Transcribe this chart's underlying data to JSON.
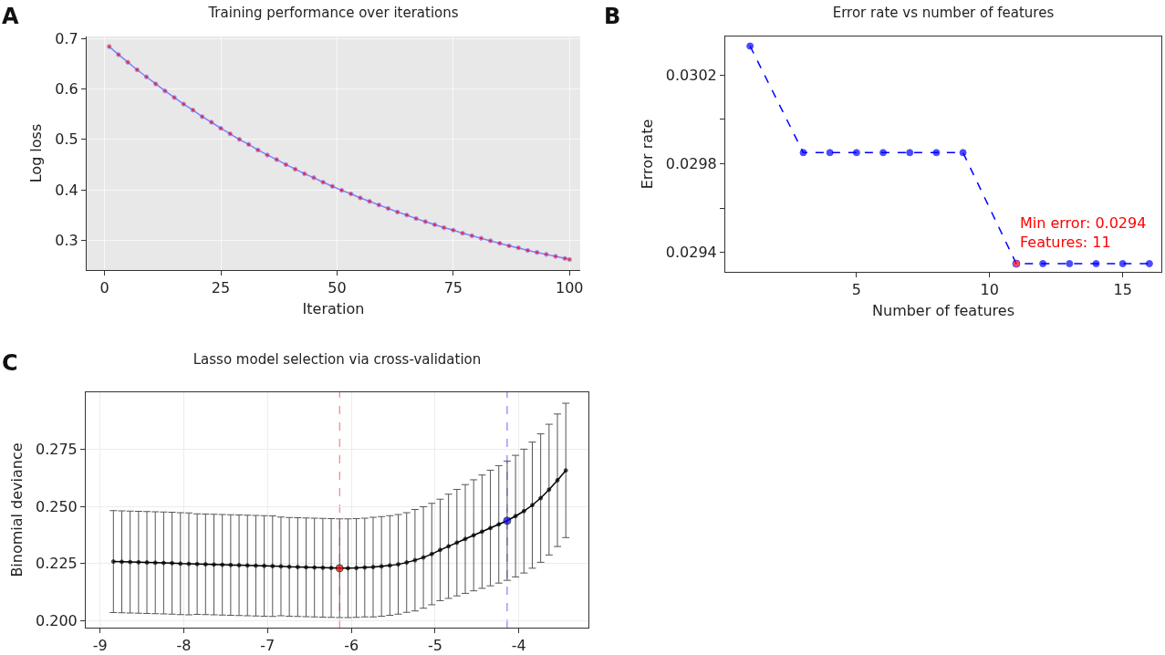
{
  "chart_data": [
    {
      "type": "line",
      "title": "Training performance over iterations",
      "xlabel": "Iteration",
      "ylabel": "Log loss",
      "annotations": [
        "A"
      ],
      "x": [
        1,
        3,
        5,
        7,
        9,
        11,
        13,
        15,
        17,
        19,
        21,
        23,
        25,
        27,
        29,
        31,
        33,
        35,
        37,
        39,
        41,
        43,
        45,
        47,
        49,
        51,
        53,
        55,
        57,
        59,
        61,
        63,
        65,
        67,
        69,
        71,
        73,
        75,
        77,
        79,
        81,
        83,
        85,
        87,
        89,
        91,
        93,
        95,
        97,
        99,
        100
      ],
      "values": [
        0.684,
        0.668,
        0.653,
        0.638,
        0.624,
        0.61,
        0.596,
        0.583,
        0.57,
        0.558,
        0.545,
        0.534,
        0.522,
        0.511,
        0.5,
        0.49,
        0.479,
        0.469,
        0.46,
        0.45,
        0.441,
        0.432,
        0.424,
        0.415,
        0.407,
        0.399,
        0.392,
        0.384,
        0.377,
        0.37,
        0.363,
        0.356,
        0.35,
        0.343,
        0.337,
        0.331,
        0.325,
        0.32,
        0.314,
        0.309,
        0.304,
        0.299,
        0.294,
        0.289,
        0.285,
        0.28,
        0.276,
        0.272,
        0.268,
        0.264,
        0.262
      ],
      "color": "#7f7fff",
      "colors": [
        "#ff0000",
        "#ff0000",
        "#ff0000",
        "#ff0000",
        "#ff0000",
        "#ff0000",
        "#ff0000",
        "#ff0000",
        "#ff0000",
        "#ff0000",
        "#ff0000",
        "#ff0000",
        "#ff0000",
        "#ff0000",
        "#ff0000",
        "#ff0000",
        "#ff0000",
        "#ff0000",
        "#ff0000",
        "#ff0000",
        "#ff0000",
        "#ff0000",
        "#ff0000",
        "#ff0000",
        "#ff0000",
        "#ff0000",
        "#ff0000",
        "#ff0000",
        "#ff0000",
        "#ff0000",
        "#ff0000",
        "#ff0000",
        "#ff0000",
        "#ff0000",
        "#ff0000",
        "#ff0000",
        "#ff0000",
        "#ff0000",
        "#ff0000",
        "#ff0000",
        "#ff0000",
        "#ff0000",
        "#ff0000",
        "#ff0000",
        "#ff0000",
        "#ff0000",
        "#ff0000",
        "#ff0000",
        "#ff0000",
        "#ff0000",
        "#ff0000"
      ],
      "marker": "circle",
      "line_style": "solid",
      "grid": true,
      "xlim": [
        -3.85,
        102.3
      ],
      "xticks": [
        0,
        25,
        50,
        75,
        100
      ],
      "ylim": [
        0.241,
        0.704
      ],
      "yticks": [
        0.3,
        0.4,
        0.5,
        0.6,
        0.7
      ]
    },
    {
      "type": "line",
      "title": "Error rate vs number of features",
      "xlabel": "Number of features",
      "ylabel": "Error rate",
      "annotations": [
        "B",
        {
          "text": "Min error: 0.0294\nFeatures: 11",
          "x": 11,
          "y": 0.02935
        }
      ],
      "x": [
        1,
        3,
        4,
        5,
        6,
        7,
        8,
        9,
        11,
        12,
        13,
        14,
        15,
        16
      ],
      "values": [
        0.03033,
        0.02985,
        0.02985,
        0.02985,
        0.02985,
        0.02985,
        0.02985,
        0.02985,
        0.02935,
        0.02935,
        0.02935,
        0.02935,
        0.02935,
        0.02935
      ],
      "color": "#0000ff",
      "colors": [
        "#0000ff",
        "#0000ff",
        "#0000ff",
        "#0000ff",
        "#0000ff",
        "#0000ff",
        "#0000ff",
        "#0000ff",
        "#ff0000",
        "#0000ff",
        "#0000ff",
        "#0000ff",
        "#0000ff",
        "#0000ff"
      ],
      "marker": "circle",
      "line_style": "dashed",
      "grid": false,
      "xlim": [
        0.07,
        16.45
      ],
      "xticks": [
        5,
        10,
        15
      ],
      "ylim": [
        0.029313,
        0.030373
      ],
      "yticks": [
        0.0294,
        {
          "value": 0.0296,
          "label": null
        },
        0.0298,
        {
          "value": 0.03,
          "label": null
        },
        0.0302
      ]
    },
    {
      "type": "line",
      "title": "Lasso model selection via cross-validation",
      "ylabel": "Binomial deviance",
      "annotations": [
        "C"
      ],
      "x": [
        -8.84,
        -8.74,
        -8.64,
        -8.54,
        -8.44,
        -8.34,
        -8.24,
        -8.14,
        -8.04,
        -7.94,
        -7.84,
        -7.74,
        -7.64,
        -7.54,
        -7.44,
        -7.34,
        -7.24,
        -7.14,
        -7.04,
        -6.94,
        -6.84,
        -6.74,
        -6.64,
        -6.54,
        -6.44,
        -6.34,
        -6.24,
        -6.14,
        -6.04,
        -5.94,
        -5.84,
        -5.74,
        -5.64,
        -5.54,
        -5.44,
        -5.34,
        -5.24,
        -5.14,
        -5.04,
        -4.94,
        -4.84,
        -4.74,
        -4.64,
        -4.54,
        -4.44,
        -4.34,
        -4.24,
        -4.14,
        -4.04,
        -3.94,
        -3.84,
        -3.74,
        -3.64,
        -3.54,
        -3.44
      ],
      "values": [
        0.2259,
        0.2258,
        0.2257,
        0.2256,
        0.2255,
        0.2254,
        0.2253,
        0.2252,
        0.225,
        0.2249,
        0.2248,
        0.2247,
        0.2246,
        0.2245,
        0.2244,
        0.2243,
        0.2242,
        0.2241,
        0.224,
        0.2239,
        0.2238,
        0.2236,
        0.2235,
        0.2234,
        0.2233,
        0.2232,
        0.2231,
        0.223,
        0.223,
        0.2231,
        0.2233,
        0.2235,
        0.2238,
        0.2242,
        0.2247,
        0.2255,
        0.2265,
        0.2277,
        0.2292,
        0.231,
        0.2326,
        0.2342,
        0.2358,
        0.2374,
        0.239,
        0.2406,
        0.2422,
        0.2438,
        0.2458,
        0.248,
        0.2506,
        0.2537,
        0.2574,
        0.2615,
        0.2658
      ],
      "errors": [
        0.0223,
        0.0223,
        0.0223,
        0.0223,
        0.0223,
        0.0223,
        0.0223,
        0.0223,
        0.0223,
        0.0223,
        0.022,
        0.022,
        0.022,
        0.022,
        0.022,
        0.022,
        0.022,
        0.022,
        0.022,
        0.022,
        0.0216,
        0.0216,
        0.0216,
        0.0216,
        0.0216,
        0.0216,
        0.0216,
        0.0216,
        0.0216,
        0.0216,
        0.0216,
        0.0218,
        0.0218,
        0.0218,
        0.0218,
        0.0218,
        0.0222,
        0.0222,
        0.0222,
        0.0222,
        0.0228,
        0.0233,
        0.0238,
        0.0243,
        0.0248,
        0.0253,
        0.0257,
        0.0261,
        0.0266,
        0.0271,
        0.0276,
        0.0281,
        0.0286,
        0.029,
        0.0294
      ],
      "color": "#000000",
      "colors": [
        "#000000",
        "#000000",
        "#000000",
        "#000000",
        "#000000",
        "#000000",
        "#000000",
        "#000000",
        "#000000",
        "#000000",
        "#000000",
        "#000000",
        "#000000",
        "#000000",
        "#000000",
        "#000000",
        "#000000",
        "#000000",
        "#000000",
        "#000000",
        "#000000",
        "#000000",
        "#000000",
        "#000000",
        "#000000",
        "#000000",
        "#000000",
        "#ff0000",
        "#000000",
        "#000000",
        "#000000",
        "#000000",
        "#000000",
        "#000000",
        "#000000",
        "#000000",
        "#000000",
        "#000000",
        "#000000",
        "#000000",
        "#000000",
        "#000000",
        "#000000",
        "#000000",
        "#000000",
        "#000000",
        "#000000",
        "#0000ff",
        "#000000",
        "#000000",
        "#000000",
        "#000000",
        "#000000",
        "#000000",
        "#000000"
      ],
      "marker": "circle",
      "line_style": "solid",
      "grid": true,
      "ref_lines": [
        {
          "axis": "x",
          "value": -6.14,
          "color": "#ff6666",
          "line_style": "dashed"
        },
        {
          "axis": "x",
          "value": -4.14,
          "color": "#6666ff",
          "line_style": "dashed"
        }
      ],
      "xlim": [
        -9.17,
        -3.17
      ],
      "xticks": [
        -9,
        -8,
        -7,
        -6,
        -5,
        -4
      ],
      "ylim": [
        0.197,
        0.3
      ],
      "yticks": [
        {
          "value": 0.2,
          "label": "0.200"
        },
        {
          "value": 0.225,
          "label": "0.225"
        },
        {
          "value": 0.25,
          "label": "0.250"
        },
        {
          "value": 0.275,
          "label": "0.275"
        }
      ]
    }
  ]
}
